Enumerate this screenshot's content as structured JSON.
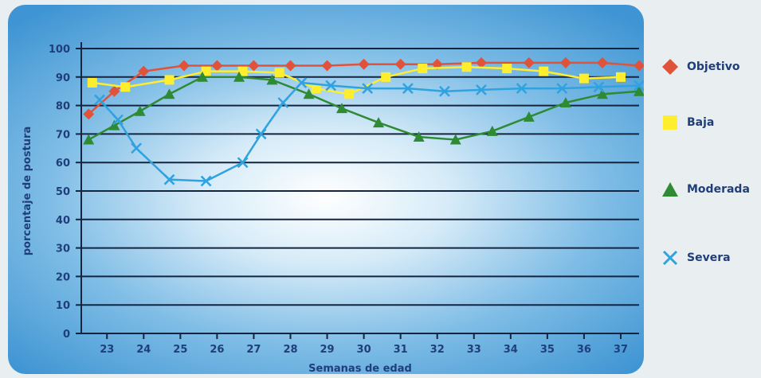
{
  "chart_data": {
    "type": "line",
    "xlabel": "Semanas de edad",
    "ylabel": "porcentaje de postura",
    "ylim": [
      0,
      100
    ],
    "xlim": [
      22.3,
      37.5
    ],
    "yticks": [
      0,
      10,
      20,
      30,
      40,
      50,
      60,
      70,
      80,
      90,
      100
    ],
    "xticks": [
      23,
      24,
      25,
      26,
      27,
      28,
      29,
      30,
      31,
      32,
      33,
      34,
      35,
      36,
      37
    ],
    "grid": true,
    "legend_position": "right",
    "series": [
      {
        "name": "Objetivo",
        "marker": "diamond",
        "color": "#e0533a",
        "x": [
          22.5,
          23.2,
          24.0,
          25.1,
          26.0,
          27.0,
          28.0,
          29.0,
          30.0,
          31.0,
          32.0,
          33.2,
          34.5,
          35.5,
          36.5,
          37.5
        ],
        "y": [
          77,
          85,
          92,
          94,
          94,
          94,
          94,
          94,
          94.5,
          94.5,
          94.5,
          95,
          95,
          95,
          95,
          94
        ]
      },
      {
        "name": "Baja",
        "marker": "square",
        "color": "#ffee2e",
        "x": [
          22.6,
          23.5,
          24.7,
          25.7,
          26.7,
          27.7,
          28.7,
          29.6,
          30.6,
          31.6,
          32.8,
          33.9,
          34.9,
          36.0,
          37.0
        ],
        "y": [
          88,
          86.5,
          89,
          92,
          92,
          91.5,
          86,
          84,
          90,
          93,
          93.5,
          93,
          92,
          89.5,
          90
        ]
      },
      {
        "name": "Moderada",
        "marker": "triangle",
        "color": "#2e8b34",
        "x": [
          22.5,
          23.2,
          23.9,
          24.7,
          25.6,
          26.6,
          27.5,
          28.5,
          29.4,
          30.4,
          31.5,
          32.5,
          33.5,
          34.5,
          35.5,
          36.5,
          37.5
        ],
        "y": [
          68,
          73,
          78,
          84,
          90,
          90,
          89,
          84,
          79,
          74,
          69,
          68,
          71,
          76,
          81,
          84,
          85
        ]
      },
      {
        "name": "Severa",
        "marker": "x",
        "color": "#2fa2e0",
        "x": [
          22.8,
          23.3,
          23.8,
          24.7,
          25.7,
          26.7,
          27.2,
          27.8,
          28.3,
          29.1,
          30.1,
          31.2,
          32.2,
          33.2,
          34.3,
          35.4,
          36.4,
          37.5
        ],
        "y": [
          82,
          75,
          65,
          54,
          53.5,
          60,
          70,
          81,
          88,
          87,
          86,
          86,
          85,
          85.5,
          86,
          86,
          86.5,
          87
        ]
      }
    ]
  }
}
